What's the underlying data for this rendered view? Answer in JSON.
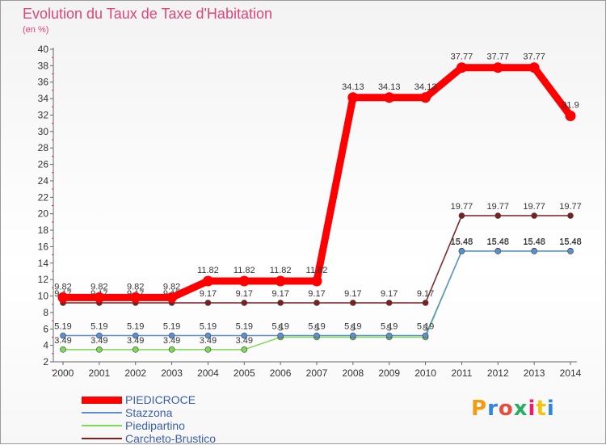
{
  "header": {
    "title": "Evolution du Taux de Taxe d'Habitation",
    "subtitle": "(en %)"
  },
  "chart_data": {
    "type": "line",
    "x": [
      "2000",
      "2001",
      "2002",
      "2003",
      "2004",
      "2005",
      "2006",
      "2007",
      "2008",
      "2009",
      "2010",
      "2011",
      "2012",
      "2013",
      "2014"
    ],
    "ylim": [
      2,
      40
    ],
    "yticks": [
      2,
      4,
      6,
      8,
      10,
      12,
      14,
      16,
      18,
      20,
      22,
      24,
      26,
      28,
      30,
      32,
      34,
      36,
      38,
      40
    ],
    "grid": false,
    "legend_position": "bottom-left",
    "series": [
      {
        "name": "Carcheto-Brustico",
        "color": "#7a2020",
        "values": [
          9.17,
          9.17,
          9.17,
          9.17,
          9.17,
          9.17,
          9.17,
          9.17,
          9.17,
          9.17,
          9.17,
          19.77,
          19.77,
          19.77,
          19.77
        ],
        "labels": [
          "9.17",
          "9.17",
          "9.17",
          "9.17",
          "9.17",
          "9.17",
          "9.17",
          "9.17",
          "9.17",
          "9.17",
          "9.17",
          "19.77",
          "19.77",
          "19.77",
          "19.77"
        ]
      },
      {
        "name": "Piedipartino",
        "color": "#7ed957",
        "values": [
          3.49,
          3.49,
          3.49,
          3.49,
          3.49,
          3.49,
          5,
          5,
          5,
          5,
          5,
          15.48,
          15.48,
          15.48,
          15.48
        ],
        "labels": [
          "3.49",
          "3.49",
          "3.49",
          "3.49",
          "3.49",
          "3.49",
          "5",
          "5",
          "5",
          "5",
          "5",
          "15.48",
          "15.48",
          "15.48",
          "15.48"
        ]
      },
      {
        "name": "Stazzona",
        "color": "#5b8fcf",
        "values": [
          5.19,
          5.19,
          5.19,
          5.19,
          5.19,
          5.19,
          5.19,
          5.19,
          5.19,
          5.19,
          5.19,
          15.45,
          15.45,
          15.45,
          15.45
        ],
        "labels": [
          "5.19",
          "5.19",
          "5.19",
          "5.19",
          "5.19",
          "5.19",
          "5.19",
          "5.19",
          "5.19",
          "5.19",
          "5.19",
          "15.45",
          "15.45",
          "15.45",
          "15.45"
        ]
      },
      {
        "name": "PIEDICROCE",
        "color": "#ff0000",
        "values": [
          9.82,
          9.82,
          9.82,
          9.82,
          11.82,
          11.82,
          11.82,
          11.82,
          34.13,
          34.13,
          34.13,
          37.77,
          37.77,
          37.77,
          31.9
        ],
        "labels": [
          "9.82",
          "9.82",
          "9.82",
          "9.82",
          "11.82",
          "11.82",
          "11.82",
          "11.82",
          "34.13",
          "34.13",
          "34.13",
          "37.77",
          "37.77",
          "37.77",
          "31.9"
        ]
      }
    ]
  },
  "legend": [
    {
      "label": "PIEDICROCE",
      "color": "#ff0000",
      "width": 9
    },
    {
      "label": "Stazzona",
      "color": "#5b8fcf",
      "width": 2
    },
    {
      "label": "Piedipartino",
      "color": "#7ed957",
      "width": 2
    },
    {
      "label": "Carcheto-Brustico",
      "color": "#7a2020",
      "width": 2
    }
  ],
  "logo": {
    "text": "Proxiti",
    "colors": [
      "#f39c12",
      "#2e86de",
      "#e74c3c",
      "#27ae60",
      "#e91e63",
      "#f1c40f",
      "#2e86de"
    ]
  }
}
